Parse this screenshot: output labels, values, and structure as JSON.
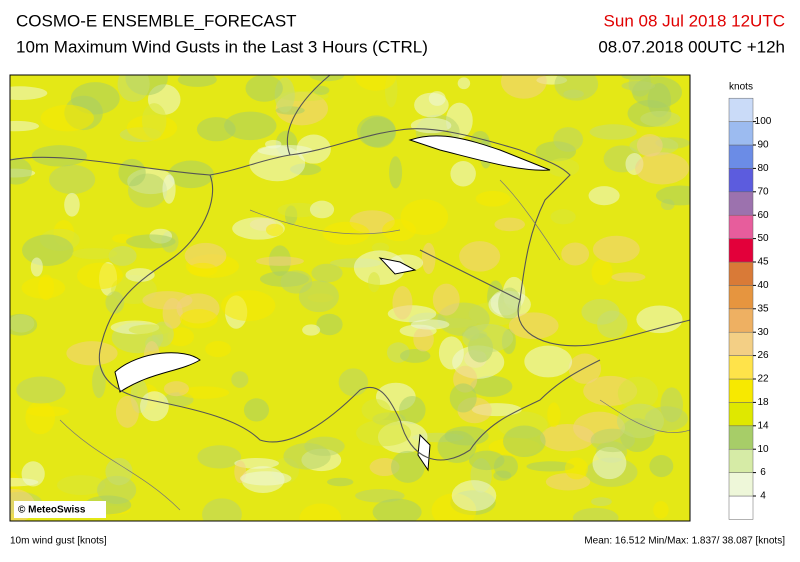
{
  "header": {
    "title": "COSMO-E ENSEMBLE_FORECAST",
    "subtitle": "10m Maximum Wind Gusts in the Last 3 Hours (CTRL)",
    "valid_time": "Sun 08 Jul 2018 12UTC",
    "run_time": "08.07.2018 00UTC +12h"
  },
  "map": {
    "copyright": "© MeteoSwiss"
  },
  "legend": {
    "unit": "knots",
    "levels": [
      4,
      6,
      10,
      14,
      18,
      22,
      26,
      30,
      35,
      40,
      45,
      50,
      60,
      70,
      80,
      90,
      100
    ],
    "colors": [
      "#ffffff",
      "#eef7d9",
      "#d6eba6",
      "#a7cd68",
      "#dfe800",
      "#f7e900",
      "#ffe34a",
      "#f3cf85",
      "#eeb062",
      "#e6953f",
      "#d97a37",
      "#e3003a",
      "#e75d9c",
      "#9c72ae",
      "#5c5cde",
      "#6b8ce6",
      "#9cbbf0",
      "#cadbf8"
    ]
  },
  "footer": {
    "variable": "10m wind gust [knots]",
    "stats": "Mean: 16.512 Min/Max:  1.837/ 38.087 [knots]"
  }
}
